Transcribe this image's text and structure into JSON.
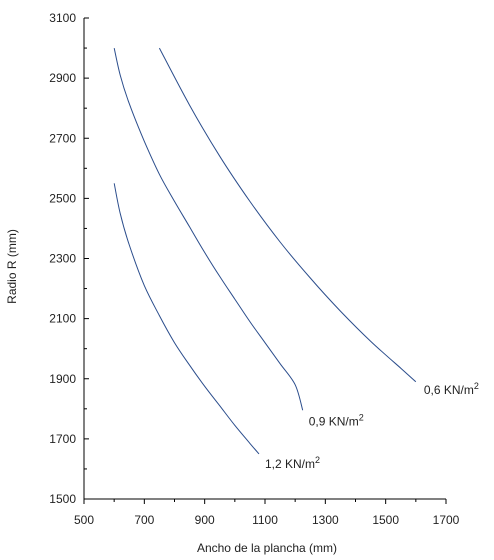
{
  "chart_data": {
    "type": "line",
    "xlabel": "Ancho de la plancha (mm)",
    "ylabel": "Radio R (mm)",
    "xlim": [
      500,
      1700
    ],
    "ylim": [
      1500,
      3100
    ],
    "xticks": [
      500,
      700,
      900,
      1100,
      1300,
      1500,
      1700
    ],
    "yticks": [
      1500,
      1700,
      1900,
      2100,
      2300,
      2500,
      2700,
      2900,
      3100
    ],
    "line_color": "#2b4d8c",
    "series": [
      {
        "name": "0,6 KN/m",
        "superscript": "2",
        "x": [
          750,
          850,
          950,
          1050,
          1150,
          1250,
          1350,
          1450,
          1550,
          1600
        ],
        "y": [
          3000,
          2810,
          2640,
          2490,
          2355,
          2235,
          2125,
          2025,
          1935,
          1890
        ]
      },
      {
        "name": "0,9 KN/m",
        "superscript": "2",
        "x": [
          600,
          620,
          650,
          700,
          750,
          800,
          850,
          900,
          950,
          1000,
          1050,
          1100,
          1150,
          1200,
          1225
        ],
        "y": [
          3000,
          2910,
          2815,
          2690,
          2580,
          2490,
          2405,
          2320,
          2240,
          2165,
          2090,
          2020,
          1950,
          1880,
          1795
        ]
      },
      {
        "name": "1,2 KN/m",
        "superscript": "2",
        "x": [
          600,
          620,
          650,
          700,
          750,
          800,
          850,
          900,
          950,
          1000,
          1050,
          1080
        ],
        "y": [
          2550,
          2450,
          2345,
          2210,
          2110,
          2020,
          1945,
          1875,
          1810,
          1745,
          1685,
          1650
        ]
      }
    ]
  }
}
